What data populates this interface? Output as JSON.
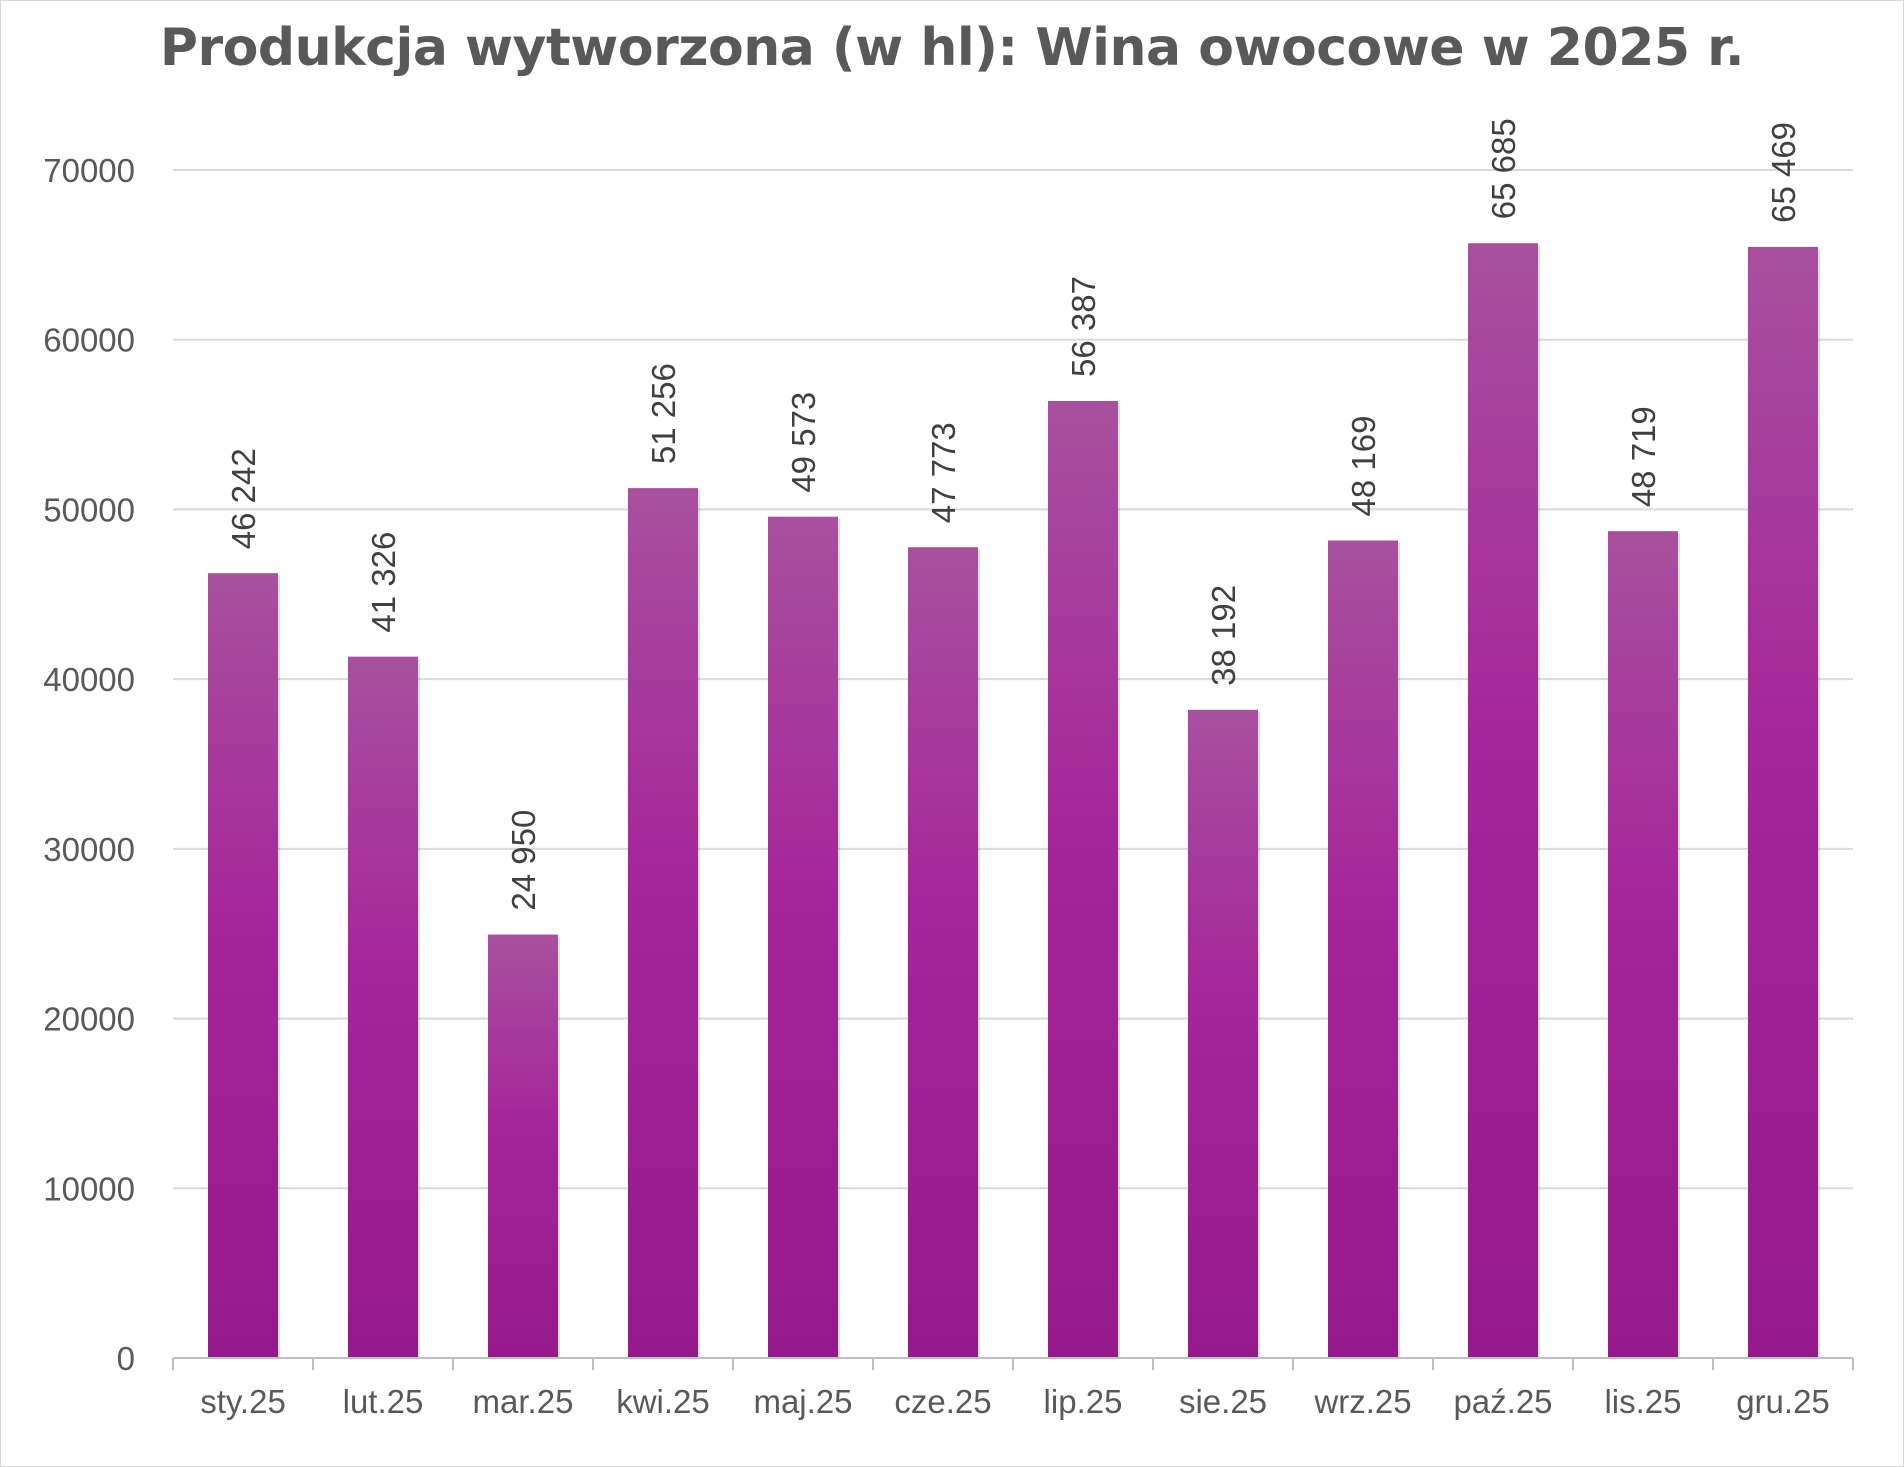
{
  "chart_data": {
    "type": "bar",
    "title": "Produkcja wytworzona (w hl): Wina owocowe w 2025 r.",
    "xlabel": "",
    "ylabel": "",
    "ylim": [
      0,
      70000
    ],
    "y_ticks": [
      "0",
      "10000",
      "20000",
      "30000",
      "40000",
      "50000",
      "60000",
      "70000"
    ],
    "y_tick_values": [
      0,
      10000,
      20000,
      30000,
      40000,
      50000,
      60000,
      70000
    ],
    "categories": [
      "sty.25",
      "lut.25",
      "mar.25",
      "kwi.25",
      "maj.25",
      "cze.25",
      "lip.25",
      "sie.25",
      "wrz.25",
      "paź.25",
      "lis.25",
      "gru.25"
    ],
    "values": [
      46242,
      41326,
      24950,
      51256,
      49573,
      47773,
      56387,
      38192,
      48169,
      65685,
      48719,
      65469
    ],
    "data_labels": [
      "46 242",
      "41 326",
      "24 950",
      "51 256",
      "49 573",
      "47 773",
      "56 387",
      "38 192",
      "48 169",
      "65 685",
      "48 719",
      "65 469"
    ],
    "grid": true,
    "legend": "none",
    "colors": {
      "bar_top": "#A8509E",
      "bar_mid": "#A5259A",
      "bar_bottom": "#951A8B",
      "grid": "#d9d9d9",
      "axis": "#bfbfbf"
    }
  }
}
